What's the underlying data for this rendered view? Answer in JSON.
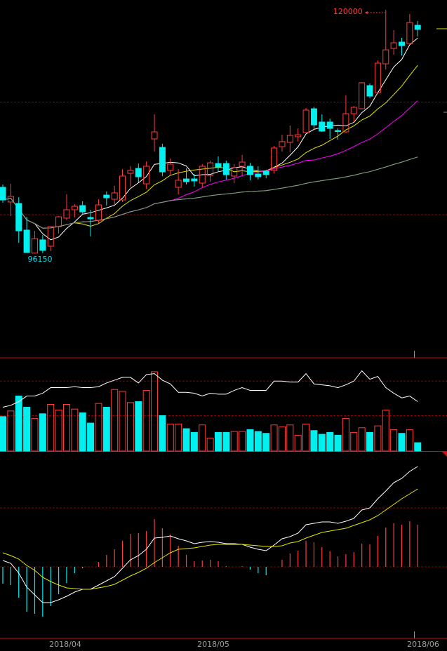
{
  "chart_data": {
    "type": "candlestick",
    "candles_ohlc": [
      [
        102620,
        102890,
        101110,
        101380
      ],
      [
        101180,
        102960,
        99800,
        101730
      ],
      [
        101040,
        101660,
        97190,
        98360
      ],
      [
        98430,
        99730,
        96200,
        96230
      ],
      [
        96170,
        98360,
        96150,
        97600
      ],
      [
        97470,
        97950,
        96180,
        96440
      ],
      [
        96850,
        98790,
        96370,
        98770
      ],
      [
        98760,
        99800,
        98090,
        99730
      ],
      [
        99600,
        101930,
        99390,
        100420
      ],
      [
        100420,
        100970,
        99670,
        100760
      ],
      [
        100830,
        101250,
        99940,
        100210
      ],
      [
        99670,
        100420,
        97810,
        99530
      ],
      [
        99390,
        101450,
        99120,
        100900
      ],
      [
        101860,
        102210,
        100830,
        101590
      ],
      [
        101450,
        102760,
        100900,
        102070
      ],
      [
        101380,
        104410,
        101180,
        103720
      ],
      [
        103990,
        104680,
        102690,
        104270
      ],
      [
        104470,
        104950,
        103100,
        103650
      ],
      [
        102960,
        105160,
        102480,
        104680
      ],
      [
        107360,
        109760,
        106120,
        108050
      ],
      [
        106530,
        106880,
        103720,
        104130
      ],
      [
        104270,
        105440,
        103860,
        104890
      ],
      [
        102620,
        104410,
        101930,
        103310
      ],
      [
        103440,
        104470,
        102890,
        103170
      ],
      [
        103440,
        103920,
        102690,
        103240
      ],
      [
        103030,
        104890,
        102620,
        104680
      ],
      [
        103790,
        105230,
        103170,
        105020
      ],
      [
        104950,
        105640,
        104200,
        104610
      ],
      [
        104950,
        105230,
        103380,
        103860
      ],
      [
        103720,
        104890,
        103030,
        104540
      ],
      [
        104680,
        105780,
        103790,
        105090
      ],
      [
        104680,
        105020,
        103310,
        103860
      ],
      [
        103920,
        104680,
        103380,
        103650
      ],
      [
        104200,
        104340,
        103510,
        103860
      ],
      [
        104270,
        106670,
        103990,
        106470
      ],
      [
        106600,
        107770,
        106120,
        107090
      ],
      [
        107020,
        108660,
        106050,
        107700
      ],
      [
        107570,
        108390,
        107090,
        107770
      ],
      [
        107980,
        110380,
        107910,
        110180
      ],
      [
        110310,
        110520,
        108250,
        108730
      ],
      [
        109010,
        109760,
        108050,
        108120
      ],
      [
        109010,
        109350,
        107360,
        108390
      ],
      [
        108180,
        108390,
        107290,
        108120
      ],
      [
        108050,
        111620,
        107970,
        109830
      ],
      [
        109830,
        110590,
        109010,
        110450
      ],
      [
        110310,
        112920,
        110250,
        112860
      ],
      [
        112580,
        112790,
        111340,
        111550
      ],
      [
        111890,
        115050,
        111880,
        114780
      ],
      [
        114710,
        120000,
        114160,
        116080
      ],
      [
        116220,
        118010,
        115600,
        116770
      ],
      [
        116840,
        117250,
        115530,
        116500
      ],
      [
        116700,
        119590,
        116690,
        118760
      ],
      [
        118490,
        118900,
        117390,
        118080
      ]
    ],
    "price_gridlines": [
      110970,
      99940
    ],
    "high_annotation": "120000",
    "low_annotation": "96150",
    "moving_average_colors": [
      "#ffffff",
      "#e6e600",
      "#ff00ff",
      "#00e600",
      "#909090"
    ],
    "volume_relative": [
      37,
      43,
      59,
      47,
      35,
      40,
      50,
      44,
      50,
      45,
      41,
      30,
      51,
      47,
      66,
      64,
      52,
      53,
      65,
      85,
      38,
      29,
      29,
      24,
      20,
      28,
      14,
      20,
      20,
      21,
      21,
      23,
      21,
      19,
      28,
      26,
      28,
      17,
      29,
      22,
      18,
      20,
      17,
      35,
      20,
      25,
      20,
      27,
      44,
      23,
      19,
      23,
      9
    ],
    "volume_indicator_line": [
      47,
      49,
      53,
      59,
      59,
      62,
      68,
      68,
      68,
      69,
      68,
      68,
      69,
      73,
      76,
      79,
      79,
      73,
      82,
      83,
      76,
      72,
      63,
      63,
      62,
      59,
      62,
      61,
      61,
      65,
      68,
      65,
      65,
      65,
      75,
      75,
      74,
      74,
      83,
      72,
      71,
      70,
      68,
      71,
      75,
      86,
      77,
      80,
      68,
      62,
      57,
      59,
      53
    ],
    "macd_dif": [
      9,
      5,
      -9,
      -29,
      -40,
      -51,
      -51,
      -47,
      -42,
      -36,
      -32,
      -32,
      -26,
      -20,
      -14,
      -2,
      10,
      16,
      25,
      41,
      42,
      44,
      40,
      37,
      33,
      35,
      36,
      35,
      33,
      33,
      32,
      28,
      25,
      23,
      31,
      40,
      43,
      48,
      60,
      62,
      64,
      64,
      62,
      65,
      69,
      81,
      84,
      97,
      108,
      120,
      126,
      136,
      143
    ],
    "macd_dea": [
      20,
      16,
      11,
      2,
      -5,
      -15,
      -21,
      -26,
      -30,
      -31,
      -32,
      -32,
      -30,
      -28,
      -25,
      -19,
      -13,
      -8,
      -2,
      6,
      13,
      20,
      25,
      26,
      27,
      29,
      31,
      32,
      32,
      32,
      32,
      31,
      30,
      29,
      29,
      30,
      34,
      36,
      41,
      45,
      49,
      51,
      53,
      55,
      59,
      63,
      67,
      73,
      81,
      89,
      97,
      104,
      111
    ],
    "macd_hist": [
      -24,
      -26,
      -44,
      -64,
      -67,
      -71,
      -56,
      -39,
      -23,
      -9,
      -2,
      0,
      7,
      17,
      25,
      37,
      47,
      48,
      51,
      68,
      55,
      46,
      30,
      17,
      8,
      9,
      10,
      8,
      1,
      0,
      1,
      -4,
      -9,
      -12,
      0,
      10,
      19,
      23,
      37,
      35,
      28,
      22,
      15,
      18,
      21,
      33,
      32,
      44,
      56,
      62,
      60,
      65,
      60
    ],
    "x_tick_labels": [
      "2018/04",
      "2018/05",
      "2018/06"
    ],
    "up_color": "#ff3c3c",
    "down_color": "#00f0f0",
    "grid_color": "#8b0000"
  }
}
